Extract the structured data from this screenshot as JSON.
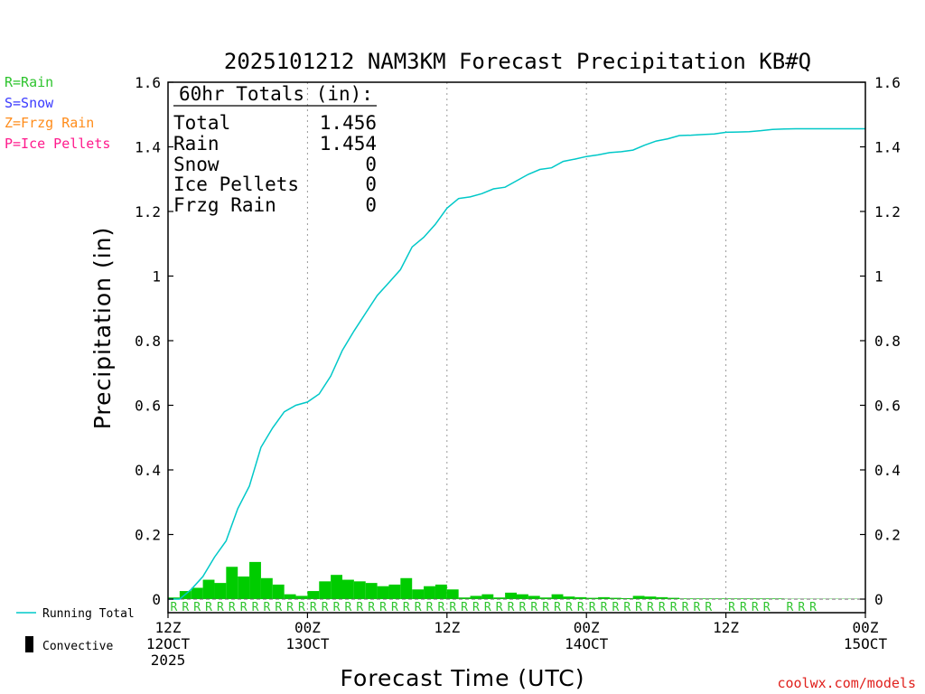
{
  "chart_data": {
    "type": "bar",
    "title": "2025101212 NAM3KM Forecast Precipitation KB#Q",
    "xlabel": "Forecast Time (UTC)",
    "ylabel": "Precipitation (in)",
    "ylim": [
      0,
      1.6
    ],
    "xlim_hours": [
      0,
      60
    ],
    "y_ticks": [
      "0",
      "0.2",
      "0.4",
      "0.6",
      "0.8",
      "1",
      "1.2",
      "1.4",
      "1.6"
    ],
    "y_tick_values": [
      0,
      0.2,
      0.4,
      0.6,
      0.8,
      1.0,
      1.2,
      1.4,
      1.6
    ],
    "x_ticks": [
      {
        "hour": 0,
        "line1": "12Z",
        "line2": "12OCT",
        "line3": "2025"
      },
      {
        "hour": 12,
        "line1": "00Z",
        "line2": "13OCT"
      },
      {
        "hour": 24,
        "line1": "12Z"
      },
      {
        "hour": 36,
        "line1": "00Z",
        "line2": "14OCT"
      },
      {
        "hour": 48,
        "line1": "12Z"
      },
      {
        "hour": 60,
        "line1": "00Z",
        "line2": "15OCT"
      }
    ],
    "precip_type_key": [
      {
        "label": "R=Rain",
        "color": "#2ec42e"
      },
      {
        "label": "S=Snow",
        "color": "#3a3aff"
      },
      {
        "label": "Z=Frzg Rain",
        "color": "#ff8c1a"
      },
      {
        "label": "P=Ice Pellets",
        "color": "#ff1a8c"
      }
    ],
    "totals_title": "60hr Totals (in):",
    "totals": [
      {
        "label": "Total",
        "value": "1.456"
      },
      {
        "label": "Rain",
        "value": "1.454"
      },
      {
        "label": "Snow",
        "value": "0"
      },
      {
        "label": "Ice Pellets",
        "value": "0"
      },
      {
        "label": "Frzg Rain",
        "value": "0"
      }
    ],
    "hourly_precip": {
      "name": "Hourly Precipitation",
      "color": "#00cc00",
      "hours": [
        1,
        2,
        3,
        4,
        5,
        6,
        7,
        8,
        9,
        10,
        11,
        12,
        13,
        14,
        15,
        16,
        17,
        18,
        19,
        20,
        21,
        22,
        23,
        24,
        25,
        26,
        27,
        28,
        29,
        30,
        31,
        32,
        33,
        34,
        35,
        36,
        37,
        38,
        39,
        40,
        41,
        42,
        43,
        44,
        45,
        46,
        47,
        48,
        49,
        50,
        51,
        52,
        53,
        54,
        55,
        56,
        57,
        58,
        59,
        60
      ],
      "values": [
        0.005,
        0.025,
        0.035,
        0.06,
        0.05,
        0.1,
        0.07,
        0.115,
        0.065,
        0.045,
        0.015,
        0.01,
        0.025,
        0.055,
        0.075,
        0.06,
        0.055,
        0.05,
        0.04,
        0.045,
        0.065,
        0.03,
        0.04,
        0.045,
        0.03,
        0.005,
        0.01,
        0.015,
        0.005,
        0.02,
        0.015,
        0.01,
        0.005,
        0.015,
        0.008,
        0.006,
        0.004,
        0.006,
        0.004,
        0.003,
        0.01,
        0.008,
        0.006,
        0.004,
        0.002,
        0.002,
        0.002,
        0.002,
        0.002,
        0.002,
        0.002,
        0.002,
        0.002,
        0.001,
        0.001,
        0.001,
        0.001,
        0.001,
        0.001,
        0.001
      ]
    },
    "running_total": {
      "name": "Running Total",
      "color": "#00c8c8",
      "hours": [
        0,
        1,
        2,
        3,
        4,
        5,
        6,
        7,
        8,
        9,
        10,
        11,
        12,
        13,
        14,
        15,
        16,
        17,
        18,
        19,
        20,
        21,
        22,
        23,
        24,
        25,
        26,
        27,
        28,
        29,
        30,
        31,
        32,
        33,
        34,
        35,
        36,
        37,
        38,
        39,
        40,
        41,
        42,
        43,
        44,
        45,
        46,
        47,
        48,
        49,
        50,
        51,
        52,
        53,
        54,
        55,
        56,
        57,
        58,
        59,
        60
      ],
      "values": [
        0,
        0,
        0.03,
        0.07,
        0.13,
        0.18,
        0.28,
        0.35,
        0.47,
        0.53,
        0.58,
        0.6,
        0.61,
        0.635,
        0.69,
        0.77,
        0.83,
        0.885,
        0.94,
        0.98,
        1.02,
        1.09,
        1.12,
        1.16,
        1.21,
        1.24,
        1.245,
        1.255,
        1.27,
        1.275,
        1.295,
        1.315,
        1.33,
        1.335,
        1.355,
        1.362,
        1.37,
        1.375,
        1.382,
        1.385,
        1.39,
        1.405,
        1.418,
        1.425,
        1.435,
        1.436,
        1.438,
        1.44,
        1.445,
        1.446,
        1.447,
        1.45,
        1.454,
        1.455,
        1.456,
        1.456,
        1.456,
        1.456,
        1.456,
        1.456,
        1.456
      ]
    },
    "precip_type_marks": {
      "letter": "R",
      "color": "#2ec42e",
      "hours": [
        1,
        2,
        3,
        4,
        5,
        6,
        7,
        8,
        9,
        10,
        11,
        12,
        13,
        14,
        15,
        16,
        17,
        18,
        19,
        20,
        21,
        22,
        23,
        24,
        25,
        26,
        27,
        28,
        29,
        30,
        31,
        32,
        33,
        34,
        35,
        36,
        37,
        38,
        39,
        40,
        41,
        42,
        43,
        44,
        45,
        46,
        47,
        49,
        50,
        51,
        52,
        54,
        55,
        56
      ]
    },
    "legend": [
      {
        "label": "Running Total",
        "kind": "line",
        "color": "#00c8c8"
      },
      {
        "label": "Convective",
        "kind": "bar",
        "color": "#000000"
      }
    ],
    "credit": "coolwx.com/models"
  }
}
